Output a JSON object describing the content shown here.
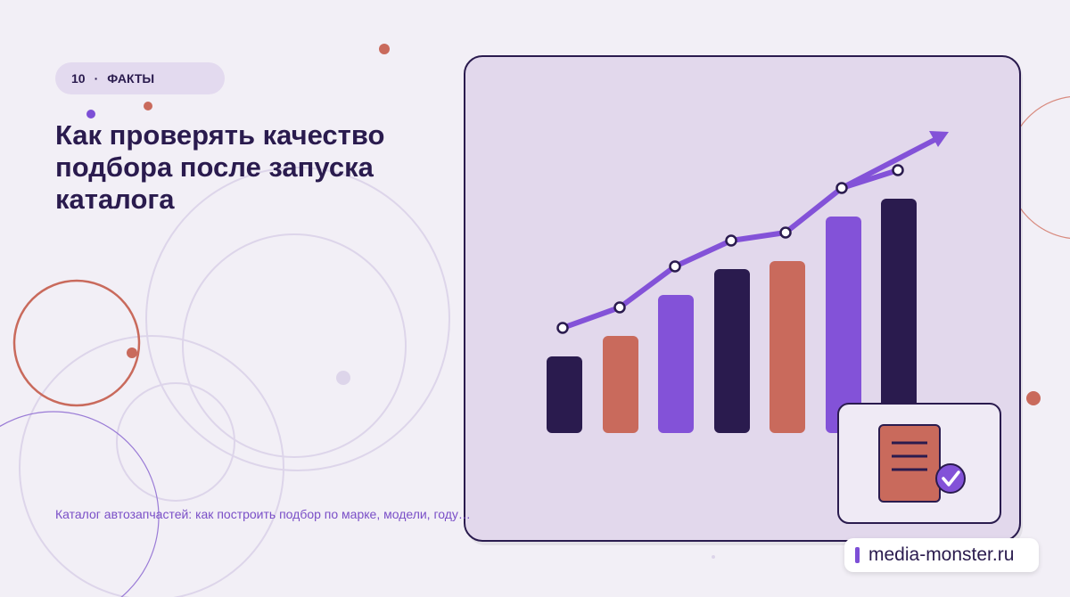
{
  "badge": {
    "number": "10",
    "separator": "·",
    "label": "ФАКТЫ"
  },
  "title": "Как проверять качество подбора после запуска каталога",
  "subtitle": "Каталог автозапчастей: как построить подбор по марке, модели, году…",
  "site": "media-monster.ru"
}
